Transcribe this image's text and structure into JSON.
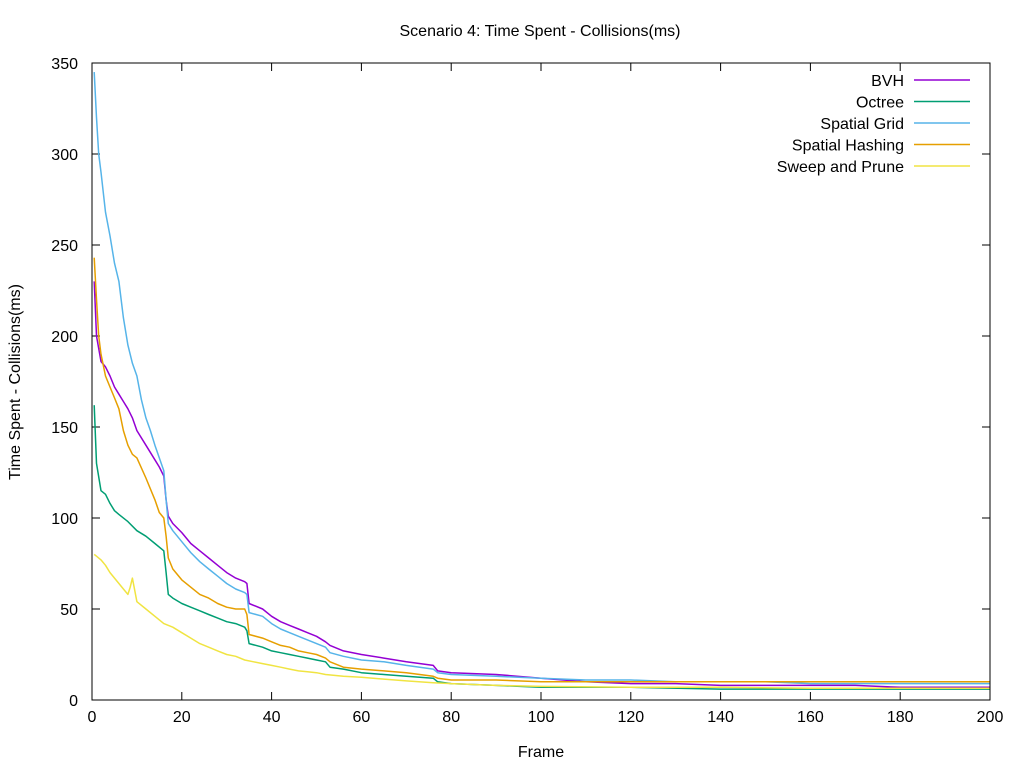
{
  "chart_data": {
    "type": "line",
    "title": "Scenario 4: Time Spent - Collisions(ms)",
    "xlabel": "Frame",
    "ylabel": "Time Spent - Collisions(ms)",
    "xlim": [
      0,
      200
    ],
    "ylim": [
      0,
      350
    ],
    "xticks": [
      "0",
      "20",
      "40",
      "60",
      "80",
      "100",
      "120",
      "140",
      "160",
      "180",
      "200"
    ],
    "yticks": [
      "0",
      "50",
      "100",
      "150",
      "200",
      "250",
      "300",
      "350"
    ],
    "grid": false,
    "legend_position": "top-right",
    "series": [
      {
        "name": "BVH",
        "color": "#9400d3",
        "x": [
          0.5,
          1,
          2,
          3,
          4,
          5,
          6,
          7,
          8,
          9,
          10,
          12,
          14,
          15,
          16,
          16.5,
          17,
          18,
          20,
          22,
          24,
          26,
          28,
          30,
          32,
          34,
          34.5,
          35,
          38,
          40,
          42,
          44,
          46,
          48,
          50,
          52,
          53,
          56,
          60,
          65,
          70,
          76,
          77,
          80,
          90,
          100,
          110,
          120,
          130,
          140,
          150,
          160,
          170,
          180,
          190,
          200
        ],
        "y": [
          230,
          200,
          186,
          183,
          178,
          172,
          168,
          164,
          160,
          155,
          148,
          140,
          132,
          128,
          123,
          110,
          101,
          97,
          92,
          86,
          82,
          78,
          74,
          70,
          67,
          65,
          64,
          53,
          50,
          46,
          43,
          41,
          39,
          37,
          35,
          32,
          30,
          27,
          25,
          23,
          21,
          19,
          16,
          15,
          14,
          12,
          10,
          9,
          9,
          8,
          8,
          8,
          8,
          7,
          7,
          7
        ]
      },
      {
        "name": "Octree",
        "color": "#009e73",
        "x": [
          0.5,
          1,
          2,
          3,
          4,
          5,
          6,
          8,
          10,
          12,
          14,
          16,
          16.5,
          17,
          18,
          20,
          22,
          24,
          26,
          28,
          30,
          32,
          34,
          34.5,
          35,
          38,
          40,
          42,
          44,
          46,
          48,
          50,
          52,
          53,
          56,
          60,
          65,
          70,
          76,
          77,
          80,
          90,
          100,
          120,
          140,
          160,
          180,
          200
        ],
        "y": [
          162,
          130,
          115,
          113,
          108,
          104,
          102,
          98,
          93,
          90,
          86,
          82,
          70,
          58,
          56,
          53,
          51,
          49,
          47,
          45,
          43,
          42,
          40,
          38,
          31,
          29,
          27,
          26,
          25,
          24,
          23,
          22,
          21,
          18,
          17,
          15,
          14,
          13,
          12,
          10,
          9,
          8,
          7,
          7,
          6,
          6,
          6,
          6
        ]
      },
      {
        "name": "Spatial Grid",
        "color": "#56b4e9",
        "x": [
          0.5,
          1,
          1.5,
          2,
          3,
          4,
          5,
          6,
          7,
          8,
          9,
          10,
          11,
          12,
          13,
          14,
          15,
          16,
          16.5,
          17,
          18,
          20,
          22,
          24,
          26,
          28,
          30,
          32,
          34,
          34.5,
          35,
          38,
          40,
          42,
          44,
          46,
          48,
          50,
          52,
          53,
          56,
          60,
          65,
          70,
          76,
          77,
          80,
          90,
          100,
          110,
          120,
          130,
          140,
          150,
          160,
          170,
          180,
          190,
          200
        ],
        "y": [
          345,
          320,
          300,
          290,
          268,
          255,
          240,
          230,
          210,
          195,
          185,
          178,
          165,
          155,
          148,
          140,
          133,
          126,
          110,
          97,
          93,
          87,
          81,
          76,
          72,
          68,
          64,
          61,
          59,
          58,
          48,
          46,
          42,
          39,
          37,
          35,
          33,
          31,
          29,
          26,
          24,
          22,
          21,
          19,
          17,
          15,
          14,
          13,
          12,
          11,
          11,
          10,
          10,
          10,
          9,
          9,
          9,
          9,
          9
        ]
      },
      {
        "name": "Spatial Hashing",
        "color": "#e69f00",
        "x": [
          0.5,
          1,
          1.5,
          2,
          3,
          4,
          5,
          6,
          7,
          8,
          9,
          10,
          12,
          14,
          15,
          16,
          16.5,
          17,
          18,
          20,
          22,
          24,
          26,
          28,
          30,
          32,
          34,
          34.5,
          35,
          38,
          40,
          42,
          44,
          46,
          48,
          50,
          52,
          53,
          56,
          60,
          65,
          70,
          76,
          77,
          80,
          90,
          100,
          120,
          140,
          160,
          180,
          200
        ],
        "y": [
          243,
          220,
          200,
          190,
          178,
          172,
          166,
          160,
          148,
          140,
          135,
          133,
          122,
          110,
          103,
          100,
          90,
          78,
          72,
          66,
          62,
          58,
          56,
          53,
          51,
          50,
          50,
          47,
          36,
          34,
          32,
          30,
          29,
          27,
          26,
          25,
          23,
          21,
          18,
          17,
          16,
          15,
          13,
          12,
          11,
          11,
          10,
          10,
          10,
          10,
          10,
          10
        ]
      },
      {
        "name": "Sweep and Prune",
        "color": "#f0e442",
        "x": [
          0.5,
          1,
          2,
          3,
          4,
          5,
          6,
          7,
          8,
          8.5,
          9,
          10,
          12,
          14,
          16,
          18,
          20,
          22,
          24,
          26,
          28,
          30,
          32,
          34,
          36,
          38,
          40,
          42,
          44,
          46,
          48,
          50,
          52,
          54,
          56,
          60,
          65,
          70,
          76,
          80,
          90,
          100,
          120,
          140,
          160,
          180,
          200
        ],
        "y": [
          80,
          79,
          77,
          74,
          70,
          67,
          64,
          61,
          58,
          62,
          67,
          54,
          50,
          46,
          42,
          40,
          37,
          34,
          31,
          29,
          27,
          25,
          24,
          22,
          21,
          20,
          19,
          18,
          17,
          16,
          15.5,
          15,
          14,
          13.5,
          13,
          12.5,
          11.5,
          10.5,
          9.5,
          9,
          8,
          7.5,
          7,
          7,
          6.5,
          6.5,
          6.5
        ]
      }
    ]
  }
}
